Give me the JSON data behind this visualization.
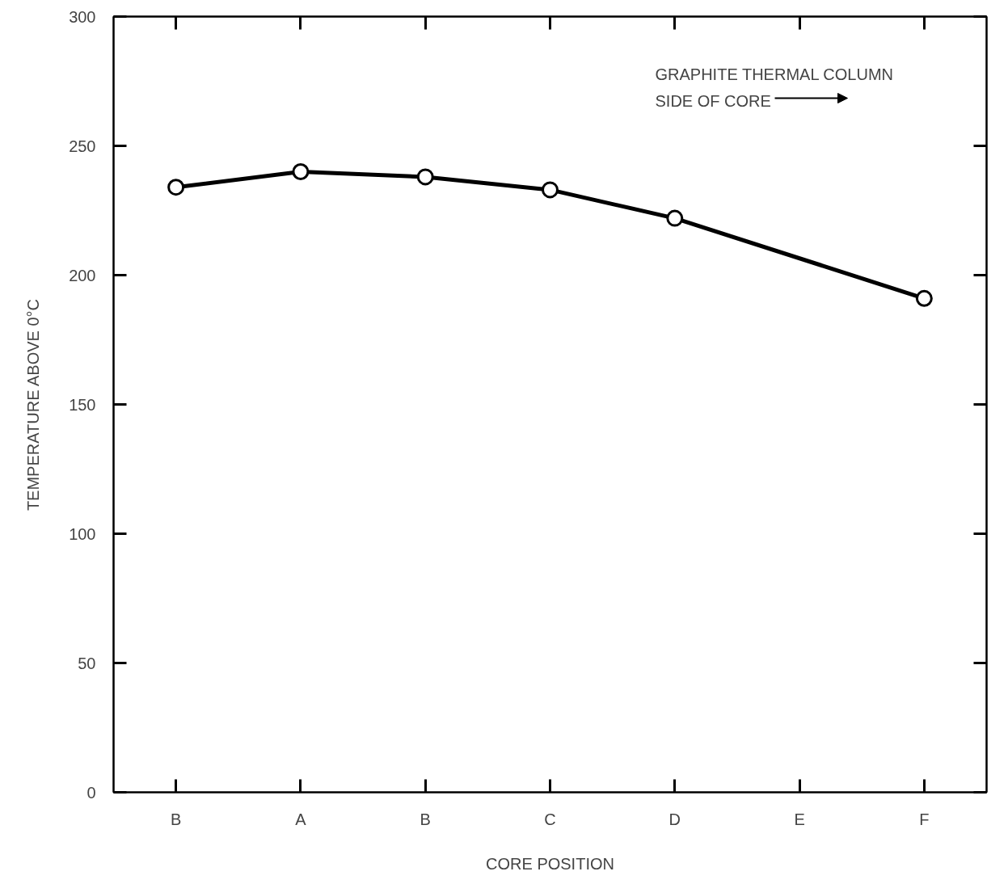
{
  "chart_data": {
    "type": "line",
    "xlabel": "CORE POSITION",
    "ylabel": "TEMPERATURE ABOVE 0°C",
    "categories": [
      "B",
      "A",
      "B",
      "C",
      "D",
      "E",
      "F"
    ],
    "series": [
      {
        "color": "#000000",
        "marker": "circle",
        "values": [
          234,
          240,
          238,
          233,
          222,
          null,
          191
        ]
      }
    ],
    "ylim": [
      0,
      300
    ],
    "yticks": [
      0,
      50,
      100,
      150,
      200,
      250,
      300
    ],
    "grid": false,
    "annotations": [
      "GRAPHITE THERMAL COLUMN\nSIDE OF CORE"
    ]
  }
}
